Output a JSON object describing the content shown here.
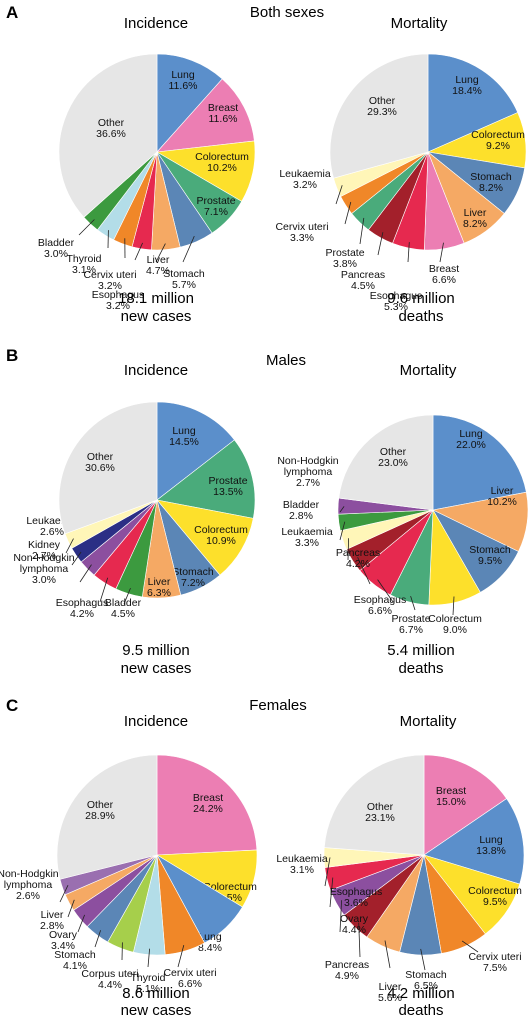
{
  "panels": [
    {
      "letter": "A",
      "title": "Both sexes",
      "charts": [
        {
          "heading": "Incidence",
          "total_line1": "18.1 million",
          "total_line2": "new cases",
          "slices": [
            {
              "name": "Lung",
              "value": 11.6,
              "label": "11.6%",
              "color": "#5b8fcb"
            },
            {
              "name": "Breast",
              "value": 11.6,
              "label": "11.6%",
              "color": "#ec7eb3"
            },
            {
              "name": "Colorectum",
              "value": 10.2,
              "label": "10.2%",
              "color": "#fde02b"
            },
            {
              "name": "Prostate",
              "value": 7.1,
              "label": "7.1%",
              "color": "#4aab7b"
            },
            {
              "name": "Stomach",
              "value": 5.7,
              "label": "5.7%",
              "color": "#5b86b6"
            },
            {
              "name": "Liver",
              "value": 4.7,
              "label": "4.7%",
              "color": "#f5a964"
            },
            {
              "name": "Esophagus",
              "value": 3.2,
              "label": "3.2%",
              "color": "#e6294f"
            },
            {
              "name": "Cervix uteri",
              "value": 3.2,
              "label": "3.2%",
              "color": "#f08728"
            },
            {
              "name": "Thyroid",
              "value": 3.1,
              "label": "3.1%",
              "color": "#b3dde8"
            },
            {
              "name": "Bladder",
              "value": 3.0,
              "label": "3.0%",
              "color": "#3c9a3f"
            },
            {
              "name": "Other",
              "value": 36.6,
              "label": "36.6%",
              "color": "#e6e6e6"
            }
          ]
        },
        {
          "heading": "Mortality",
          "total_line1": "9.6 million",
          "total_line2": "deaths",
          "slices": [
            {
              "name": "Lung",
              "value": 18.4,
              "label": "18.4%",
              "color": "#5b8fcb"
            },
            {
              "name": "Colorectum",
              "value": 9.2,
              "label": "9.2%",
              "color": "#fde02b"
            },
            {
              "name": "Stomach",
              "value": 8.2,
              "label": "8.2%",
              "color": "#5b86b6"
            },
            {
              "name": "Liver",
              "value": 8.2,
              "label": "8.2%",
              "color": "#f5a964"
            },
            {
              "name": "Breast",
              "value": 6.6,
              "label": "6.6%",
              "color": "#ec7eb3"
            },
            {
              "name": "Esophagus",
              "value": 5.3,
              "label": "5.3%",
              "color": "#e6294f"
            },
            {
              "name": "Pancreas",
              "value": 4.5,
              "label": "4.5%",
              "color": "#a3202b"
            },
            {
              "name": "Prostate",
              "value": 3.8,
              "label": "3.8%",
              "color": "#4aab7b"
            },
            {
              "name": "Cervix uteri",
              "value": 3.3,
              "label": "3.3%",
              "color": "#f08728"
            },
            {
              "name": "Leukaemia",
              "value": 3.2,
              "label": "3.2%",
              "color": "#fff6b8"
            },
            {
              "name": "Other",
              "value": 29.3,
              "label": "29.3%",
              "color": "#e6e6e6"
            }
          ]
        }
      ]
    },
    {
      "letter": "B",
      "title": "Males",
      "charts": [
        {
          "heading": "Incidence",
          "total_line1": "9.5 million",
          "total_line2": "new cases",
          "slices": [
            {
              "name": "Lung",
              "value": 14.5,
              "label": "14.5%",
              "color": "#5b8fcb"
            },
            {
              "name": "Prostate",
              "value": 13.5,
              "label": "13.5%",
              "color": "#4aab7b"
            },
            {
              "name": "Colorectum",
              "value": 10.9,
              "label": "10.9%",
              "color": "#fde02b"
            },
            {
              "name": "Stomach",
              "value": 7.2,
              "label": "7.2%",
              "color": "#5b86b6"
            },
            {
              "name": "Liver",
              "value": 6.3,
              "label": "6.3%",
              "color": "#f5a964"
            },
            {
              "name": "Bladder",
              "value": 4.5,
              "label": "4.5%",
              "color": "#3c9a3f"
            },
            {
              "name": "Esophagus",
              "value": 4.2,
              "label": "4.2%",
              "color": "#e6294f"
            },
            {
              "name": "Non-Hodgkin lymphoma",
              "value": 3.0,
              "label": "3.0%",
              "color": "#8c4f9f"
            },
            {
              "name": "Kidney",
              "value": 2.7,
              "label": "2.7%",
              "color": "#2b2f85"
            },
            {
              "name": "Leukaemia",
              "value": 2.6,
              "label": "2.6%",
              "color": "#fff6b8"
            },
            {
              "name": "Other",
              "value": 30.6,
              "label": "30.6%",
              "color": "#e6e6e6"
            }
          ]
        },
        {
          "heading": "Mortality",
          "total_line1": "5.4 million",
          "total_line2": "deaths",
          "slices": [
            {
              "name": "Lung",
              "value": 22.0,
              "label": "22.0%",
              "color": "#5b8fcb"
            },
            {
              "name": "Liver",
              "value": 10.2,
              "label": "10.2%",
              "color": "#f5a964"
            },
            {
              "name": "Stomach",
              "value": 9.5,
              "label": "9.5%",
              "color": "#5b86b6"
            },
            {
              "name": "Colorectum",
              "value": 9.0,
              "label": "9.0%",
              "color": "#fde02b"
            },
            {
              "name": "Prostate",
              "value": 6.7,
              "label": "6.7%",
              "color": "#4aab7b"
            },
            {
              "name": "Esophagus",
              "value": 6.6,
              "label": "6.6%",
              "color": "#e6294f"
            },
            {
              "name": "Pancreas",
              "value": 4.2,
              "label": "4.2%",
              "color": "#a3202b"
            },
            {
              "name": "Leukaemia",
              "value": 3.3,
              "label": "3.3%",
              "color": "#fff6b8"
            },
            {
              "name": "Bladder",
              "value": 2.8,
              "label": "2.8%",
              "color": "#3c9a3f"
            },
            {
              "name": "Non-Hodgkin lymphoma",
              "value": 2.7,
              "label": "2.7%",
              "color": "#8c4f9f"
            },
            {
              "name": "Other",
              "value": 23.0,
              "label": "23.0%",
              "color": "#e6e6e6"
            }
          ]
        }
      ]
    },
    {
      "letter": "C",
      "title": "Females",
      "charts": [
        {
          "heading": "Incidence",
          "total_line1": "8.6 million",
          "total_line2": "new cases",
          "slices": [
            {
              "name": "Breast",
              "value": 24.2,
              "label": "24.2%",
              "color": "#ec7eb3"
            },
            {
              "name": "Colorectum",
              "value": 9.5,
              "label": "9.5%",
              "color": "#fde02b"
            },
            {
              "name": "Lung",
              "value": 8.4,
              "label": "8.4%",
              "color": "#5b8fcb"
            },
            {
              "name": "Cervix uteri",
              "value": 6.6,
              "label": "6.6%",
              "color": "#f08728"
            },
            {
              "name": "Thyroid",
              "value": 5.1,
              "label": "5.1%",
              "color": "#b3dde8"
            },
            {
              "name": "Corpus uteri",
              "value": 4.4,
              "label": "4.4%",
              "color": "#a6cf4b"
            },
            {
              "name": "Stomach",
              "value": 4.1,
              "label": "4.1%",
              "color": "#5b86b6"
            },
            {
              "name": "Ovary",
              "value": 3.4,
              "label": "3.4%",
              "color": "#8c4f9f"
            },
            {
              "name": "Liver",
              "value": 2.8,
              "label": "2.8%",
              "color": "#f5a964"
            },
            {
              "name": "Non-Hodgkin lymphoma",
              "value": 2.6,
              "label": "2.6%",
              "color": "#9a6fb0"
            },
            {
              "name": "Other",
              "value": 28.9,
              "label": "28.9%",
              "color": "#e6e6e6"
            }
          ]
        },
        {
          "heading": "Mortality",
          "total_line1": "4.2 million",
          "total_line2": "deaths",
          "slices": [
            {
              "name": "Breast",
              "value": 15.0,
              "label": "15.0%",
              "color": "#ec7eb3"
            },
            {
              "name": "Lung",
              "value": 13.8,
              "label": "13.8%",
              "color": "#5b8fcb"
            },
            {
              "name": "Colorectum",
              "value": 9.5,
              "label": "9.5%",
              "color": "#fde02b"
            },
            {
              "name": "Cervix uteri",
              "value": 7.5,
              "label": "7.5%",
              "color": "#f08728"
            },
            {
              "name": "Stomach",
              "value": 6.5,
              "label": "6.5%",
              "color": "#5b86b6"
            },
            {
              "name": "Liver",
              "value": 5.6,
              "label": "5.6%",
              "color": "#f5a964"
            },
            {
              "name": "Pancreas",
              "value": 4.9,
              "label": "4.9%",
              "color": "#a3202b"
            },
            {
              "name": "Ovary",
              "value": 4.4,
              "label": "4.4%",
              "color": "#8c4f9f"
            },
            {
              "name": "Esophagus",
              "value": 3.6,
              "label": "3.6%",
              "color": "#e6294f"
            },
            {
              "name": "Leukaemia",
              "value": 3.1,
              "label": "3.1%",
              "color": "#fff6b8"
            },
            {
              "name": "Other",
              "value": 23.1,
              "label": "23.1%",
              "color": "#e6e6e6"
            }
          ]
        }
      ]
    }
  ],
  "chart_data": [
    {
      "type": "pie",
      "title": "Both sexes — Incidence",
      "categories": [
        "Lung",
        "Breast",
        "Colorectum",
        "Prostate",
        "Stomach",
        "Liver",
        "Esophagus",
        "Cervix uteri",
        "Thyroid",
        "Bladder",
        "Other"
      ],
      "values": [
        11.6,
        11.6,
        10.2,
        7.1,
        5.7,
        4.7,
        3.2,
        3.2,
        3.1,
        3.0,
        36.6
      ],
      "total": "18.1 million new cases"
    },
    {
      "type": "pie",
      "title": "Both sexes — Mortality",
      "categories": [
        "Lung",
        "Colorectum",
        "Stomach",
        "Liver",
        "Breast",
        "Esophagus",
        "Pancreas",
        "Prostate",
        "Cervix uteri",
        "Leukaemia",
        "Other"
      ],
      "values": [
        18.4,
        9.2,
        8.2,
        8.2,
        6.6,
        5.3,
        4.5,
        3.8,
        3.3,
        3.2,
        29.3
      ],
      "total": "9.6 million deaths"
    },
    {
      "type": "pie",
      "title": "Males — Incidence",
      "categories": [
        "Lung",
        "Prostate",
        "Colorectum",
        "Stomach",
        "Liver",
        "Bladder",
        "Esophagus",
        "Non-Hodgkin lymphoma",
        "Kidney",
        "Leukaemia",
        "Other"
      ],
      "values": [
        14.5,
        13.5,
        10.9,
        7.2,
        6.3,
        4.5,
        4.2,
        3.0,
        2.7,
        2.6,
        30.6
      ],
      "total": "9.5 million new cases"
    },
    {
      "type": "pie",
      "title": "Males — Mortality",
      "categories": [
        "Lung",
        "Liver",
        "Stomach",
        "Colorectum",
        "Prostate",
        "Esophagus",
        "Pancreas",
        "Leukaemia",
        "Bladder",
        "Non-Hodgkin lymphoma",
        "Other"
      ],
      "values": [
        22.0,
        10.2,
        9.5,
        9.0,
        6.7,
        6.6,
        4.2,
        3.3,
        2.8,
        2.7,
        23.0
      ],
      "total": "5.4 million deaths"
    },
    {
      "type": "pie",
      "title": "Females — Incidence",
      "categories": [
        "Breast",
        "Colorectum",
        "Lung",
        "Cervix uteri",
        "Thyroid",
        "Corpus uteri",
        "Stomach",
        "Ovary",
        "Liver",
        "Non-Hodgkin lymphoma",
        "Other"
      ],
      "values": [
        24.2,
        9.5,
        8.4,
        6.6,
        5.1,
        4.4,
        4.1,
        3.4,
        2.8,
        2.6,
        28.9
      ],
      "total": "8.6 million new cases"
    },
    {
      "type": "pie",
      "title": "Females — Mortality",
      "categories": [
        "Breast",
        "Lung",
        "Colorectum",
        "Cervix uteri",
        "Stomach",
        "Liver",
        "Pancreas",
        "Ovary",
        "Esophagus",
        "Leukaemia",
        "Other"
      ],
      "values": [
        15.0,
        13.8,
        9.5,
        7.5,
        6.5,
        5.6,
        4.9,
        4.4,
        3.6,
        3.1,
        23.1
      ],
      "total": "4.2 million deaths"
    }
  ]
}
